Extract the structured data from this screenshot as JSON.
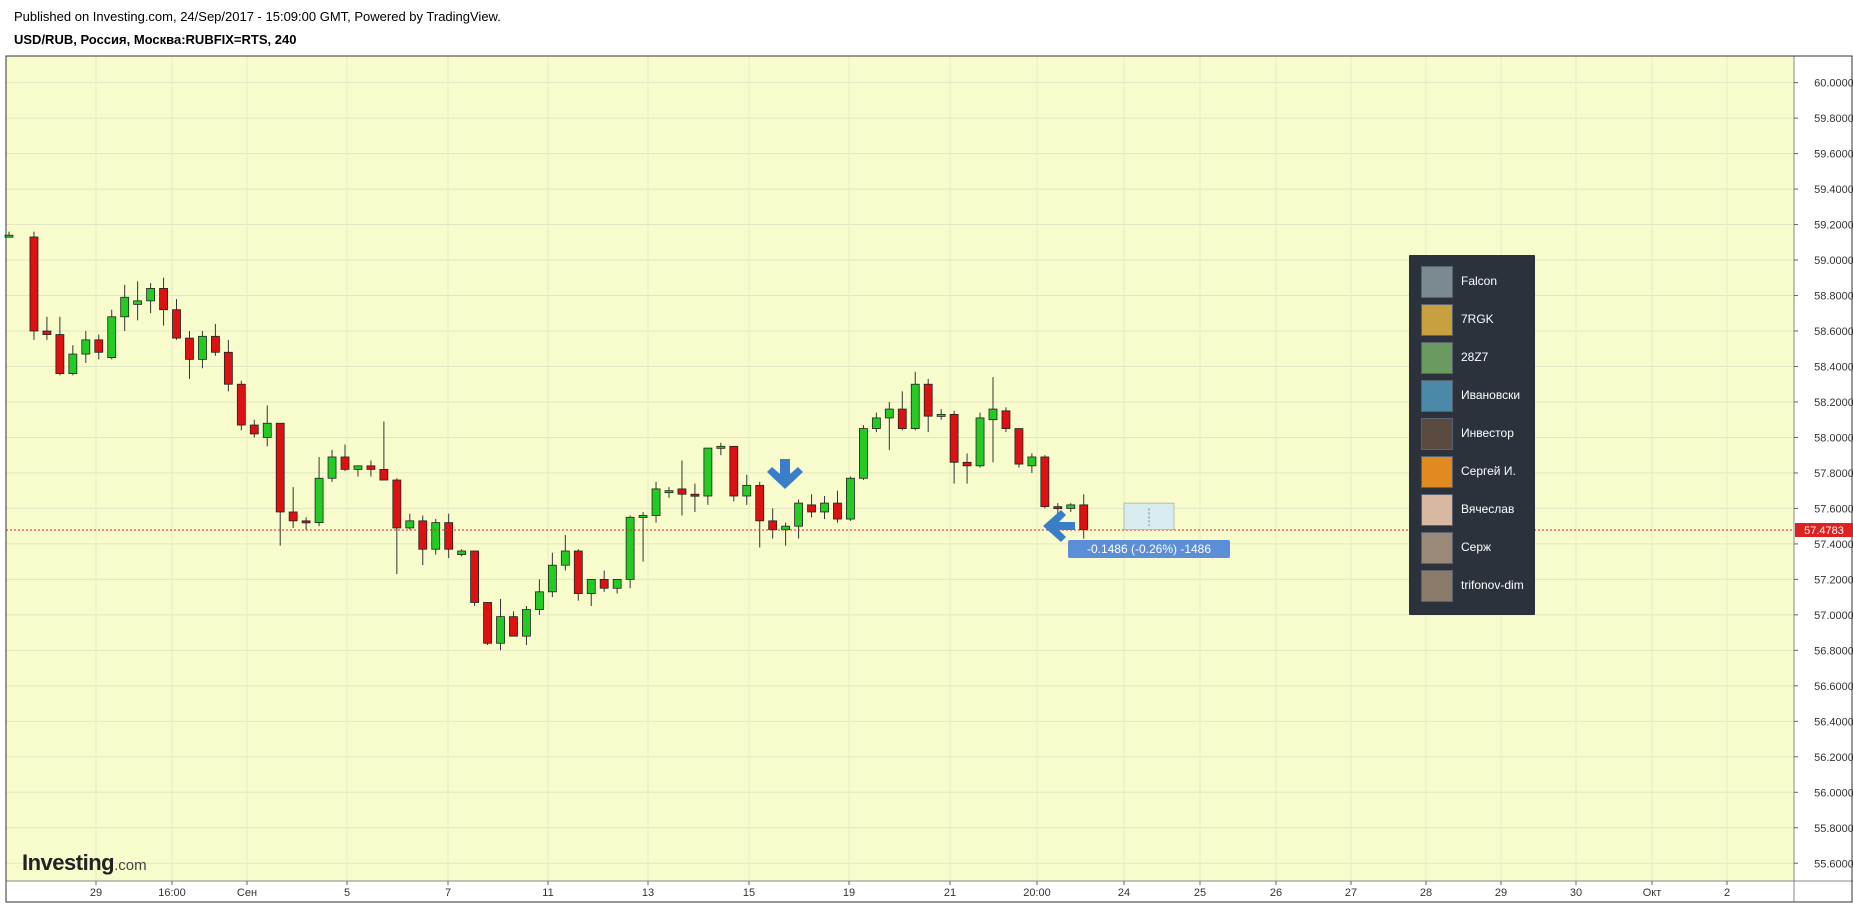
{
  "header": {
    "published": "Published on Investing.com, 24/Sep/2017 - 15:09:00 GMT, Powered by TradingView.",
    "symbol": "USD/RUB, Россия, Москва:RUBFIX=RTS, 240"
  },
  "logo": {
    "main": "Investing",
    "suffix": ".com"
  },
  "colors": {
    "plot_bg": "#f8fccc",
    "up": "#22cc22",
    "down": "#dd1111",
    "price_line": "#e02020",
    "arrow": "#3a7dc9",
    "legend_bg": "#2b323c",
    "badge_bg": "#5b8ed6"
  },
  "price_badge": "57.4783",
  "change_badge": "-0.1486 (-0.26%) -1486",
  "legend": [
    {
      "name": "Falcon",
      "avatar": "#7a8a90"
    },
    {
      "name": "7RGK",
      "avatar": "#c9a040"
    },
    {
      "name": "28Z7",
      "avatar": "#6a9a60"
    },
    {
      "name": "Ивановски",
      "avatar": "#4a8aa8"
    },
    {
      "name": "Инвестор",
      "avatar": "#5a4a40"
    },
    {
      "name": "Сергей И.",
      "avatar": "#e08a20"
    },
    {
      "name": "Вячеслав",
      "avatar": "#d8b8a0"
    },
    {
      "name": "Серж",
      "avatar": "#9a8878"
    },
    {
      "name": "trifonov-dim",
      "avatar": "#8a7a6a"
    }
  ],
  "chart_data": {
    "type": "candlestick",
    "title": "USD/RUB, Россия, Москва:RUBFIX=RTS, 240",
    "ylim": [
      55.5,
      60.15
    ],
    "y_ticks": [
      "60.0000",
      "59.8000",
      "59.6000",
      "59.4000",
      "59.2000",
      "59.0000",
      "58.8000",
      "58.6000",
      "58.4000",
      "58.2000",
      "58.0000",
      "57.8000",
      "57.6000",
      "57.4000",
      "57.2000",
      "57.0000",
      "56.8000",
      "56.6000",
      "56.4000",
      "56.2000",
      "56.0000",
      "55.8000",
      "55.6000"
    ],
    "x_ticks": [
      "29",
      "16:00",
      "Сен",
      "5",
      "7",
      "11",
      "13",
      "15",
      "19",
      "21",
      "20:00",
      "24",
      "25",
      "26",
      "27",
      "28",
      "29",
      "30",
      "Окт",
      "2"
    ],
    "last_price": 57.4783,
    "change": "-0.1486 (-0.26%) -1486",
    "grid": true,
    "candles": [
      {
        "o": 59.14,
        "h": 59.16,
        "l": 59.13,
        "c": 59.14
      },
      {
        "o": 59.13,
        "h": 59.16,
        "l": 58.55,
        "c": 58.6
      },
      {
        "o": 58.6,
        "h": 58.68,
        "l": 58.55,
        "c": 58.58
      },
      {
        "o": 58.58,
        "h": 58.68,
        "l": 58.35,
        "c": 58.36
      },
      {
        "o": 58.36,
        "h": 58.52,
        "l": 58.35,
        "c": 58.47
      },
      {
        "o": 58.47,
        "h": 58.6,
        "l": 58.42,
        "c": 58.55
      },
      {
        "o": 58.55,
        "h": 58.58,
        "l": 58.44,
        "c": 58.48
      },
      {
        "o": 58.45,
        "h": 58.72,
        "l": 58.44,
        "c": 58.68
      },
      {
        "o": 58.68,
        "h": 58.86,
        "l": 58.6,
        "c": 58.79
      },
      {
        "o": 58.75,
        "h": 58.88,
        "l": 58.66,
        "c": 58.77
      },
      {
        "o": 58.77,
        "h": 58.87,
        "l": 58.7,
        "c": 58.84
      },
      {
        "o": 58.84,
        "h": 58.9,
        "l": 58.63,
        "c": 58.72
      },
      {
        "o": 58.72,
        "h": 58.78,
        "l": 58.55,
        "c": 58.56
      },
      {
        "o": 58.56,
        "h": 58.6,
        "l": 58.33,
        "c": 58.44
      },
      {
        "o": 58.44,
        "h": 58.6,
        "l": 58.39,
        "c": 58.57
      },
      {
        "o": 58.57,
        "h": 58.64,
        "l": 58.46,
        "c": 58.48
      },
      {
        "o": 58.48,
        "h": 58.55,
        "l": 58.26,
        "c": 58.3
      },
      {
        "o": 58.3,
        "h": 58.32,
        "l": 58.04,
        "c": 58.07
      },
      {
        "o": 58.07,
        "h": 58.1,
        "l": 58.0,
        "c": 58.02
      },
      {
        "o": 58.0,
        "h": 58.18,
        "l": 57.95,
        "c": 58.08
      },
      {
        "o": 58.08,
        "h": 58.08,
        "l": 57.39,
        "c": 57.58
      },
      {
        "o": 57.58,
        "h": 57.72,
        "l": 57.49,
        "c": 57.53
      },
      {
        "o": 57.53,
        "h": 57.55,
        "l": 57.48,
        "c": 57.52
      },
      {
        "o": 57.52,
        "h": 57.89,
        "l": 57.5,
        "c": 57.77
      },
      {
        "o": 57.77,
        "h": 57.93,
        "l": 57.75,
        "c": 57.89
      },
      {
        "o": 57.89,
        "h": 57.96,
        "l": 57.81,
        "c": 57.82
      },
      {
        "o": 57.82,
        "h": 57.84,
        "l": 57.78,
        "c": 57.84
      },
      {
        "o": 57.84,
        "h": 57.87,
        "l": 57.78,
        "c": 57.82
      },
      {
        "o": 57.82,
        "h": 58.09,
        "l": 57.76,
        "c": 57.76
      },
      {
        "o": 57.76,
        "h": 57.77,
        "l": 57.23,
        "c": 57.49
      },
      {
        "o": 57.49,
        "h": 57.57,
        "l": 57.48,
        "c": 57.53
      },
      {
        "o": 57.53,
        "h": 57.56,
        "l": 57.28,
        "c": 57.37
      },
      {
        "o": 57.37,
        "h": 57.54,
        "l": 57.34,
        "c": 57.52
      },
      {
        "o": 57.52,
        "h": 57.57,
        "l": 57.32,
        "c": 57.37
      },
      {
        "o": 57.34,
        "h": 57.37,
        "l": 57.33,
        "c": 57.36
      },
      {
        "o": 57.36,
        "h": 57.36,
        "l": 57.05,
        "c": 57.07
      },
      {
        "o": 57.07,
        "h": 57.07,
        "l": 56.83,
        "c": 56.84
      },
      {
        "o": 56.84,
        "h": 57.09,
        "l": 56.8,
        "c": 56.99
      },
      {
        "o": 56.99,
        "h": 57.02,
        "l": 56.88,
        "c": 56.88
      },
      {
        "o": 56.88,
        "h": 57.05,
        "l": 56.83,
        "c": 57.03
      },
      {
        "o": 57.03,
        "h": 57.2,
        "l": 57.0,
        "c": 57.13
      },
      {
        "o": 57.13,
        "h": 57.35,
        "l": 57.1,
        "c": 57.28
      },
      {
        "o": 57.28,
        "h": 57.45,
        "l": 57.25,
        "c": 57.36
      },
      {
        "o": 57.36,
        "h": 57.37,
        "l": 57.08,
        "c": 57.12
      },
      {
        "o": 57.12,
        "h": 57.2,
        "l": 57.05,
        "c": 57.2
      },
      {
        "o": 57.2,
        "h": 57.25,
        "l": 57.13,
        "c": 57.15
      },
      {
        "o": 57.15,
        "h": 57.2,
        "l": 57.12,
        "c": 57.2
      },
      {
        "o": 57.2,
        "h": 57.56,
        "l": 57.15,
        "c": 57.55
      },
      {
        "o": 57.55,
        "h": 57.58,
        "l": 57.3,
        "c": 57.56
      },
      {
        "o": 57.56,
        "h": 57.75,
        "l": 57.52,
        "c": 57.71
      },
      {
        "o": 57.7,
        "h": 57.72,
        "l": 57.66,
        "c": 57.7
      },
      {
        "o": 57.71,
        "h": 57.87,
        "l": 57.56,
        "c": 57.68
      },
      {
        "o": 57.68,
        "h": 57.74,
        "l": 57.58,
        "c": 57.67
      },
      {
        "o": 57.67,
        "h": 57.94,
        "l": 57.62,
        "c": 57.94
      },
      {
        "o": 57.94,
        "h": 57.97,
        "l": 57.9,
        "c": 57.95
      },
      {
        "o": 57.95,
        "h": 57.95,
        "l": 57.64,
        "c": 57.67
      },
      {
        "o": 57.67,
        "h": 57.79,
        "l": 57.62,
        "c": 57.73
      },
      {
        "o": 57.73,
        "h": 57.75,
        "l": 57.38,
        "c": 57.53
      },
      {
        "o": 57.53,
        "h": 57.6,
        "l": 57.43,
        "c": 57.48
      },
      {
        "o": 57.48,
        "h": 57.52,
        "l": 57.39,
        "c": 57.5
      },
      {
        "o": 57.5,
        "h": 57.65,
        "l": 57.43,
        "c": 57.63
      },
      {
        "o": 57.62,
        "h": 57.68,
        "l": 57.55,
        "c": 57.58
      },
      {
        "o": 57.58,
        "h": 57.67,
        "l": 57.54,
        "c": 57.63
      },
      {
        "o": 57.63,
        "h": 57.7,
        "l": 57.52,
        "c": 57.54
      },
      {
        "o": 57.54,
        "h": 57.78,
        "l": 57.53,
        "c": 57.77
      },
      {
        "o": 57.77,
        "h": 58.07,
        "l": 57.76,
        "c": 58.05
      },
      {
        "o": 58.05,
        "h": 58.14,
        "l": 58.03,
        "c": 58.11
      },
      {
        "o": 58.11,
        "h": 58.2,
        "l": 57.93,
        "c": 58.16
      },
      {
        "o": 58.16,
        "h": 58.26,
        "l": 58.04,
        "c": 58.05
      },
      {
        "o": 58.05,
        "h": 58.37,
        "l": 58.04,
        "c": 58.3
      },
      {
        "o": 58.3,
        "h": 58.33,
        "l": 58.03,
        "c": 58.12
      },
      {
        "o": 58.12,
        "h": 58.16,
        "l": 58.1,
        "c": 58.13
      },
      {
        "o": 58.13,
        "h": 58.15,
        "l": 57.74,
        "c": 57.86
      },
      {
        "o": 57.86,
        "h": 57.91,
        "l": 57.74,
        "c": 57.84
      },
      {
        "o": 57.84,
        "h": 58.14,
        "l": 57.83,
        "c": 58.11
      },
      {
        "o": 58.1,
        "h": 58.34,
        "l": 57.86,
        "c": 58.16
      },
      {
        "o": 58.15,
        "h": 58.17,
        "l": 58.03,
        "c": 58.05
      },
      {
        "o": 58.05,
        "h": 58.05,
        "l": 57.83,
        "c": 57.85
      },
      {
        "o": 57.84,
        "h": 57.91,
        "l": 57.8,
        "c": 57.89
      },
      {
        "o": 57.89,
        "h": 57.9,
        "l": 57.6,
        "c": 57.61
      },
      {
        "o": 57.61,
        "h": 57.63,
        "l": 57.53,
        "c": 57.6
      },
      {
        "o": 57.6,
        "h": 57.63,
        "l": 57.58,
        "c": 57.62
      },
      {
        "o": 57.62,
        "h": 57.68,
        "l": 57.43,
        "c": 57.48
      }
    ]
  }
}
